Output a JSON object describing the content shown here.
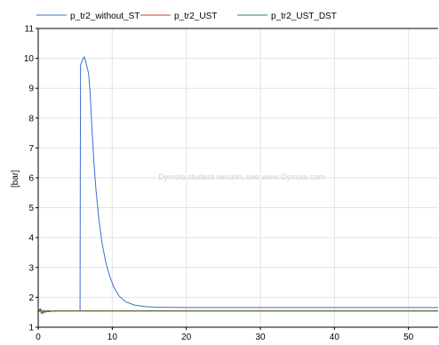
{
  "colors": {
    "series_blue": "#3b6fd0",
    "series_red": "#d43a2f",
    "series_green": "#2e8a4a",
    "grid": "#e3e3e3",
    "axis": "#000000",
    "watermark": "#d2d2d2"
  },
  "watermark": "Dymola student version, see www.Dymola.com",
  "chart_data": {
    "type": "line",
    "title": "",
    "xlabel": "",
    "ylabel": "[bar]",
    "xlim": [
      0,
      54
    ],
    "ylim": [
      1,
      11
    ],
    "xticks": [
      0,
      10,
      20,
      30,
      40,
      50
    ],
    "yticks": [
      1,
      2,
      3,
      4,
      5,
      6,
      7,
      8,
      9,
      10,
      11
    ],
    "grid": true,
    "legend_position": "top",
    "series": [
      {
        "name": "p_tr2_without_ST",
        "color": "#3b6fd0",
        "points": [
          [
            0,
            1.5
          ],
          [
            0.3,
            1.62
          ],
          [
            0.6,
            1.48
          ],
          [
            0.9,
            1.55
          ],
          [
            1.2,
            1.52
          ],
          [
            1.5,
            1.56
          ],
          [
            1.8,
            1.53
          ],
          [
            2.5,
            1.55
          ],
          [
            4,
            1.55
          ],
          [
            5.65,
            1.55
          ],
          [
            5.68,
            5.7
          ],
          [
            5.72,
            9.8
          ],
          [
            5.85,
            9.85
          ],
          [
            6.0,
            9.95
          ],
          [
            6.2,
            10.05
          ],
          [
            6.35,
            9.95
          ],
          [
            6.6,
            9.7
          ],
          [
            6.8,
            9.5
          ],
          [
            7.0,
            8.9
          ],
          [
            7.2,
            7.9
          ],
          [
            7.5,
            6.6
          ],
          [
            7.8,
            5.6
          ],
          [
            8.2,
            4.6
          ],
          [
            8.6,
            3.85
          ],
          [
            9.1,
            3.2
          ],
          [
            9.6,
            2.75
          ],
          [
            10.2,
            2.35
          ],
          [
            10.9,
            2.05
          ],
          [
            11.8,
            1.85
          ],
          [
            13,
            1.74
          ],
          [
            14.5,
            1.69
          ],
          [
            16,
            1.67
          ],
          [
            20,
            1.66
          ],
          [
            30,
            1.66
          ],
          [
            40,
            1.66
          ],
          [
            54,
            1.66
          ]
        ]
      },
      {
        "name": "p_tr2_UST",
        "color": "#d43a2f",
        "points": [
          [
            0,
            1.5
          ],
          [
            0.2,
            1.6
          ],
          [
            0.45,
            1.45
          ],
          [
            0.7,
            1.57
          ],
          [
            1.0,
            1.5
          ],
          [
            1.3,
            1.56
          ],
          [
            1.6,
            1.52
          ],
          [
            2.0,
            1.55
          ],
          [
            5,
            1.55
          ],
          [
            20,
            1.55
          ],
          [
            54,
            1.55
          ]
        ]
      },
      {
        "name": "p_tr2_UST_DST",
        "color": "#2e8a4a",
        "points": [
          [
            0,
            1.5
          ],
          [
            0.35,
            1.58
          ],
          [
            0.65,
            1.47
          ],
          [
            1.0,
            1.55
          ],
          [
            1.4,
            1.52
          ],
          [
            2.0,
            1.54
          ],
          [
            5,
            1.54
          ],
          [
            20,
            1.54
          ],
          [
            54,
            1.54
          ]
        ]
      }
    ]
  }
}
